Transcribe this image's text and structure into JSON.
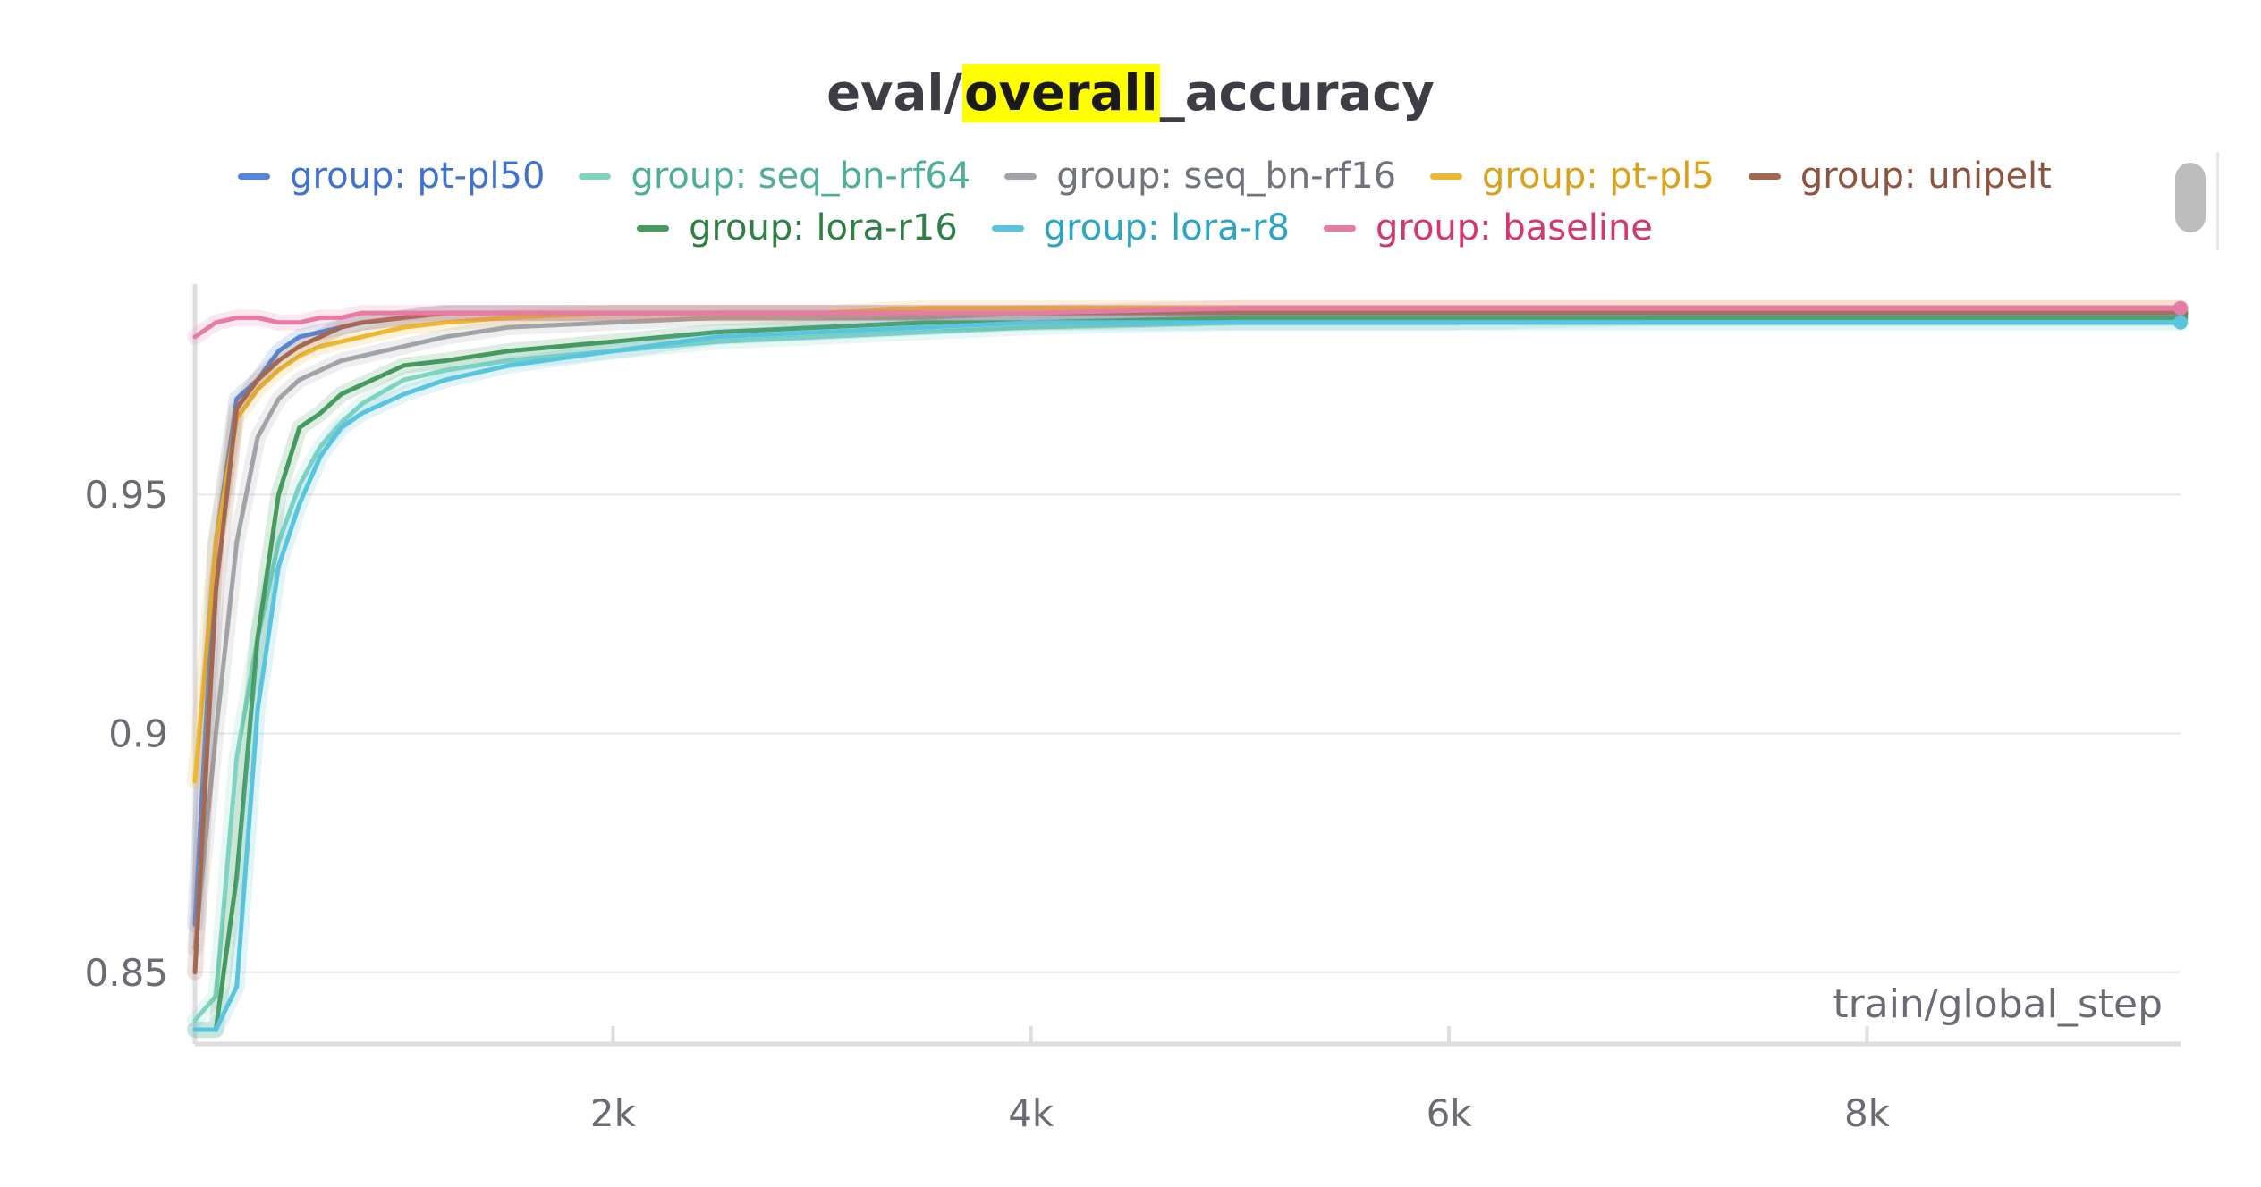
{
  "chart_data": {
    "type": "line",
    "title_parts": [
      "eval/",
      "overall",
      "_accuracy"
    ],
    "xlabel": "train/global_step",
    "ylabel": "",
    "xlim": [
      0,
      9500
    ],
    "ylim": [
      0.835,
      0.994
    ],
    "x_ticks": [
      {
        "v": 2000,
        "label": "2k"
      },
      {
        "v": 4000,
        "label": "4k"
      },
      {
        "v": 6000,
        "label": "6k"
      },
      {
        "v": 8000,
        "label": "8k"
      }
    ],
    "y_ticks": [
      {
        "v": 0.85,
        "label": "0.85"
      },
      {
        "v": 0.9,
        "label": "0.9"
      },
      {
        "v": 0.95,
        "label": "0.95"
      }
    ],
    "grid": true,
    "legend_position": "top",
    "x": [
      0,
      100,
      200,
      300,
      400,
      500,
      600,
      700,
      800,
      1000,
      1200,
      1500,
      2000,
      2500,
      3000,
      3500,
      4000,
      5000,
      6000,
      7000,
      8000,
      9000,
      9500
    ],
    "series": [
      {
        "name": "group: pt-pl50",
        "color": "#5387dd",
        "values": [
          0.86,
          0.94,
          0.97,
          0.974,
          0.98,
          0.983,
          0.984,
          0.985,
          0.986,
          0.987,
          0.988,
          0.988,
          0.988,
          0.988,
          0.988,
          0.988,
          0.988,
          0.988,
          0.988,
          0.988,
          0.988,
          0.988,
          0.988
        ]
      },
      {
        "name": "group: seq_bn-rf64",
        "color": "#7fd4c1",
        "values": [
          0.84,
          0.845,
          0.895,
          0.92,
          0.94,
          0.952,
          0.96,
          0.965,
          0.969,
          0.974,
          0.976,
          0.978,
          0.98,
          0.982,
          0.983,
          0.984,
          0.985,
          0.986,
          0.986,
          0.987,
          0.987,
          0.987,
          0.987
        ]
      },
      {
        "name": "group: seq_bn-rf16",
        "color": "#a0a3a8",
        "values": [
          0.855,
          0.9,
          0.94,
          0.962,
          0.97,
          0.974,
          0.976,
          0.978,
          0.979,
          0.981,
          0.983,
          0.985,
          0.986,
          0.987,
          0.987,
          0.987,
          0.988,
          0.988,
          0.988,
          0.988,
          0.988,
          0.988,
          0.988
        ]
      },
      {
        "name": "group: pt-pl5",
        "color": "#edb732",
        "values": [
          0.89,
          0.94,
          0.966,
          0.972,
          0.976,
          0.979,
          0.981,
          0.982,
          0.983,
          0.985,
          0.986,
          0.987,
          0.988,
          0.988,
          0.988,
          0.989,
          0.989,
          0.989,
          0.989,
          0.989,
          0.989,
          0.989,
          0.989
        ]
      },
      {
        "name": "group: unipelt",
        "color": "#a46750",
        "values": [
          0.85,
          0.93,
          0.968,
          0.974,
          0.978,
          0.981,
          0.983,
          0.985,
          0.986,
          0.987,
          0.988,
          0.988,
          0.988,
          0.988,
          0.988,
          0.988,
          0.988,
          0.988,
          0.988,
          0.988,
          0.988,
          0.988,
          0.988
        ]
      },
      {
        "name": "group: lora-r16",
        "color": "#479a5f",
        "values": [
          0.838,
          0.838,
          0.87,
          0.92,
          0.95,
          0.964,
          0.967,
          0.971,
          0.973,
          0.977,
          0.978,
          0.98,
          0.982,
          0.984,
          0.985,
          0.986,
          0.986,
          0.987,
          0.987,
          0.987,
          0.987,
          0.987,
          0.987
        ]
      },
      {
        "name": "group: lora-r8",
        "color": "#58c4dd",
        "values": [
          0.838,
          0.838,
          0.847,
          0.905,
          0.935,
          0.948,
          0.958,
          0.964,
          0.967,
          0.971,
          0.974,
          0.977,
          0.98,
          0.983,
          0.984,
          0.985,
          0.986,
          0.986,
          0.986,
          0.986,
          0.986,
          0.986,
          0.986
        ]
      },
      {
        "name": "group: baseline",
        "color": "#e87ba4",
        "values": [
          0.983,
          0.986,
          0.987,
          0.987,
          0.986,
          0.986,
          0.987,
          0.987,
          0.988,
          0.988,
          0.988,
          0.988,
          0.988,
          0.988,
          0.988,
          0.988,
          0.988,
          0.989,
          0.989,
          0.989,
          0.989,
          0.989,
          0.989
        ]
      }
    ]
  },
  "legend_text_colors": [
    "#3f72d0",
    "#4fae98",
    "#6f737a",
    "#d9a21a",
    "#8e5440",
    "#2f7f47",
    "#2aa5c3",
    "#d4366e"
  ],
  "legend_rows": [
    [
      0,
      1,
      2,
      3,
      4
    ],
    [
      5,
      6,
      7
    ]
  ]
}
